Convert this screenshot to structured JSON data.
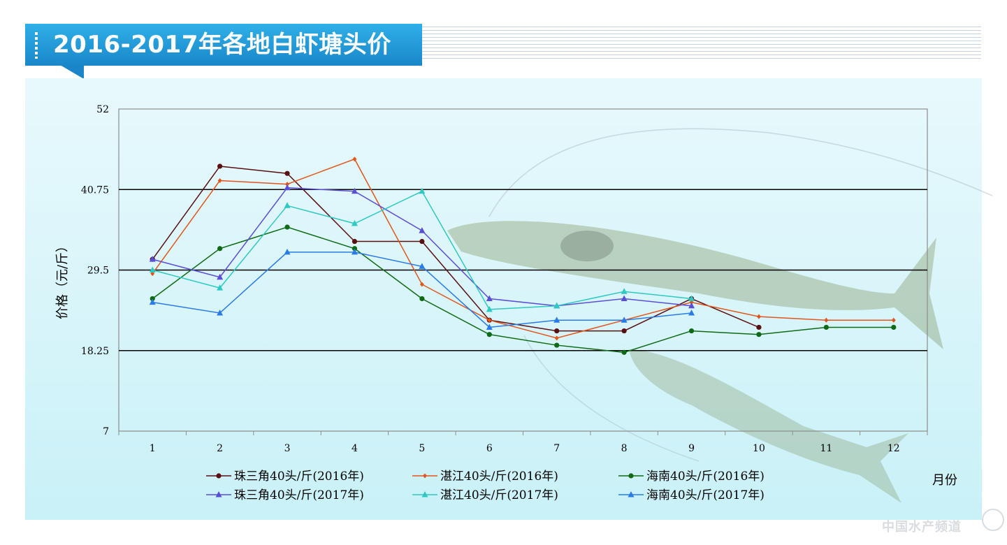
{
  "header": {
    "title": "2016-2017年各地白虾塘头价"
  },
  "watermark": {
    "text": "中国水产频道"
  },
  "colors": {
    "banner": "#1a86c9",
    "panel": "#c9f1f8"
  },
  "chart_data": {
    "type": "line",
    "title": "",
    "xlabel": "月份",
    "ylabel": "价格（元/斤）",
    "ylim": [
      7,
      52
    ],
    "yticks": [
      "52",
      "40.75",
      "29.5",
      "18.25",
      "7"
    ],
    "ytick_values": [
      52,
      40.75,
      29.5,
      18.25,
      7
    ],
    "x": [
      "1",
      "2",
      "3",
      "4",
      "5",
      "6",
      "7",
      "8",
      "9",
      "10",
      "11",
      "12"
    ],
    "grid": "horizontal",
    "legend_position": "bottom",
    "series": [
      {
        "name": "珠三角40头/斤(2016年)",
        "color": "#5a0f10",
        "marker": "circle",
        "values": [
          31.0,
          44.0,
          43.0,
          33.5,
          33.5,
          22.5,
          21.0,
          21.0,
          25.5,
          21.5,
          null,
          null
        ]
      },
      {
        "name": "湛江40头/斤(2016年)",
        "color": "#e0561c",
        "marker": "diamond",
        "values": [
          29.0,
          42.0,
          41.5,
          45.0,
          27.5,
          22.5,
          20.0,
          22.5,
          25.0,
          23.0,
          22.5,
          22.5
        ]
      },
      {
        "name": "海南40头/斤(2016年)",
        "color": "#0e6a14",
        "marker": "circle",
        "values": [
          25.5,
          32.5,
          35.5,
          32.5,
          25.5,
          20.5,
          19.0,
          18.0,
          21.0,
          20.5,
          21.5,
          21.5
        ]
      },
      {
        "name": "珠三角40头/斤(2017年)",
        "color": "#5b4ed6",
        "marker": "triangle",
        "values": [
          31.0,
          28.5,
          41.0,
          40.5,
          35.0,
          25.5,
          24.5,
          25.5,
          24.5,
          null,
          null,
          null
        ]
      },
      {
        "name": "湛江40头/斤(2017年)",
        "color": "#2ec9c0",
        "marker": "triangle",
        "values": [
          29.5,
          27.0,
          38.5,
          36.0,
          40.5,
          24.0,
          24.5,
          26.5,
          25.5,
          null,
          null,
          null
        ]
      },
      {
        "name": "海南40头/斤(2017年)",
        "color": "#2a7be6",
        "marker": "triangle",
        "values": [
          25.0,
          23.5,
          32.0,
          32.0,
          30.0,
          21.5,
          22.5,
          22.5,
          23.5,
          null,
          null,
          null
        ]
      }
    ]
  }
}
